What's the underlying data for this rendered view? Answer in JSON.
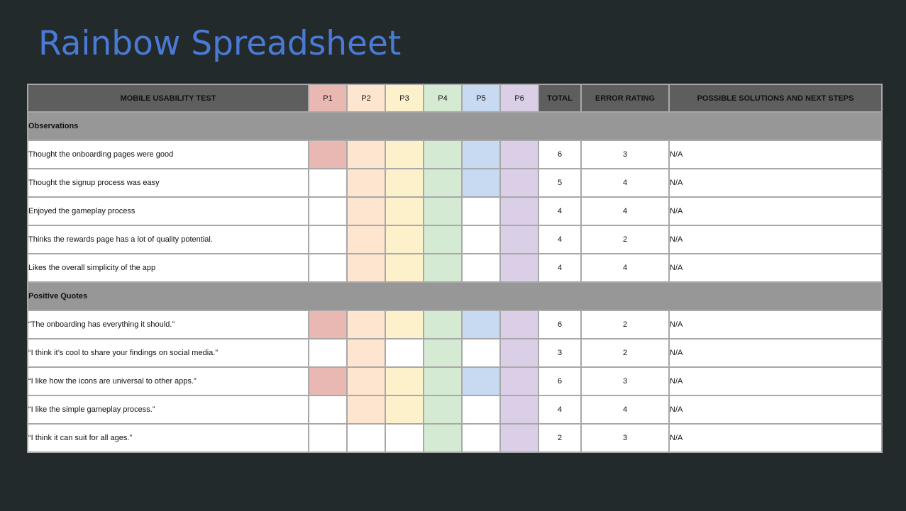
{
  "title": "Rainbow Spreadsheet",
  "colors": {
    "title": "#4a7ad4",
    "background": "#232a2c",
    "header_bg": "#5e5e5e",
    "section_bg": "#979797",
    "p1": "#eab8b3",
    "p2": "#fde5cf",
    "p3": "#fdf1cc",
    "p4": "#d5ead3",
    "p5": "#c8d9f2",
    "p6": "#dbcfe8"
  },
  "header": {
    "test": "MOBILE USABILITY TEST",
    "participants": [
      "P1",
      "P2",
      "P3",
      "P4",
      "P5",
      "P6"
    ],
    "total": "TOTAL",
    "error_rating": "ERROR RATING",
    "solutions": "POSSIBLE SOLUTIONS AND NEXT STEPS"
  },
  "sections": [
    {
      "name": "Observations",
      "rows": [
        {
          "label": "Thought the onboarding pages were good",
          "marks": [
            1,
            1,
            1,
            1,
            1,
            1
          ],
          "total": "6",
          "error": "3",
          "solution": "N/A"
        },
        {
          "label": "Thought the signup process was easy",
          "marks": [
            0,
            1,
            1,
            1,
            1,
            1
          ],
          "total": "5",
          "error": "4",
          "solution": "N/A"
        },
        {
          "label": "Enjoyed the gameplay process",
          "marks": [
            0,
            1,
            1,
            1,
            0,
            1
          ],
          "total": "4",
          "error": "4",
          "solution": "N/A"
        },
        {
          "label": "Thinks the rewards page has a lot of quality potential.",
          "marks": [
            0,
            1,
            1,
            1,
            0,
            1
          ],
          "total": "4",
          "error": "2",
          "solution": "N/A"
        },
        {
          "label": "Likes the overall simplicity of the app",
          "marks": [
            0,
            1,
            1,
            1,
            0,
            1
          ],
          "total": "4",
          "error": "4",
          "solution": "N/A"
        }
      ]
    },
    {
      "name": "Positive Quotes",
      "rows": [
        {
          "label": "“The onboarding has everything it should.”",
          "marks": [
            1,
            1,
            1,
            1,
            1,
            1
          ],
          "total": "6",
          "error": "2",
          "solution": "N/A"
        },
        {
          "label": "“I think it’s cool to share your findings on social media.”",
          "marks": [
            0,
            1,
            0,
            1,
            0,
            1
          ],
          "total": "3",
          "error": "2",
          "solution": "N/A"
        },
        {
          "label": "“I like how the icons are universal to other apps.”",
          "marks": [
            1,
            1,
            1,
            1,
            1,
            1
          ],
          "total": "6",
          "error": "3",
          "solution": "N/A"
        },
        {
          "label": "“I like the simple gameplay process.”",
          "marks": [
            0,
            1,
            1,
            1,
            0,
            1
          ],
          "total": "4",
          "error": "4",
          "solution": "N/A"
        },
        {
          "label": "“I think it can suit for all ages.”",
          "marks": [
            0,
            0,
            0,
            1,
            0,
            1
          ],
          "total": "2",
          "error": "3",
          "solution": "N/A"
        }
      ]
    }
  ]
}
